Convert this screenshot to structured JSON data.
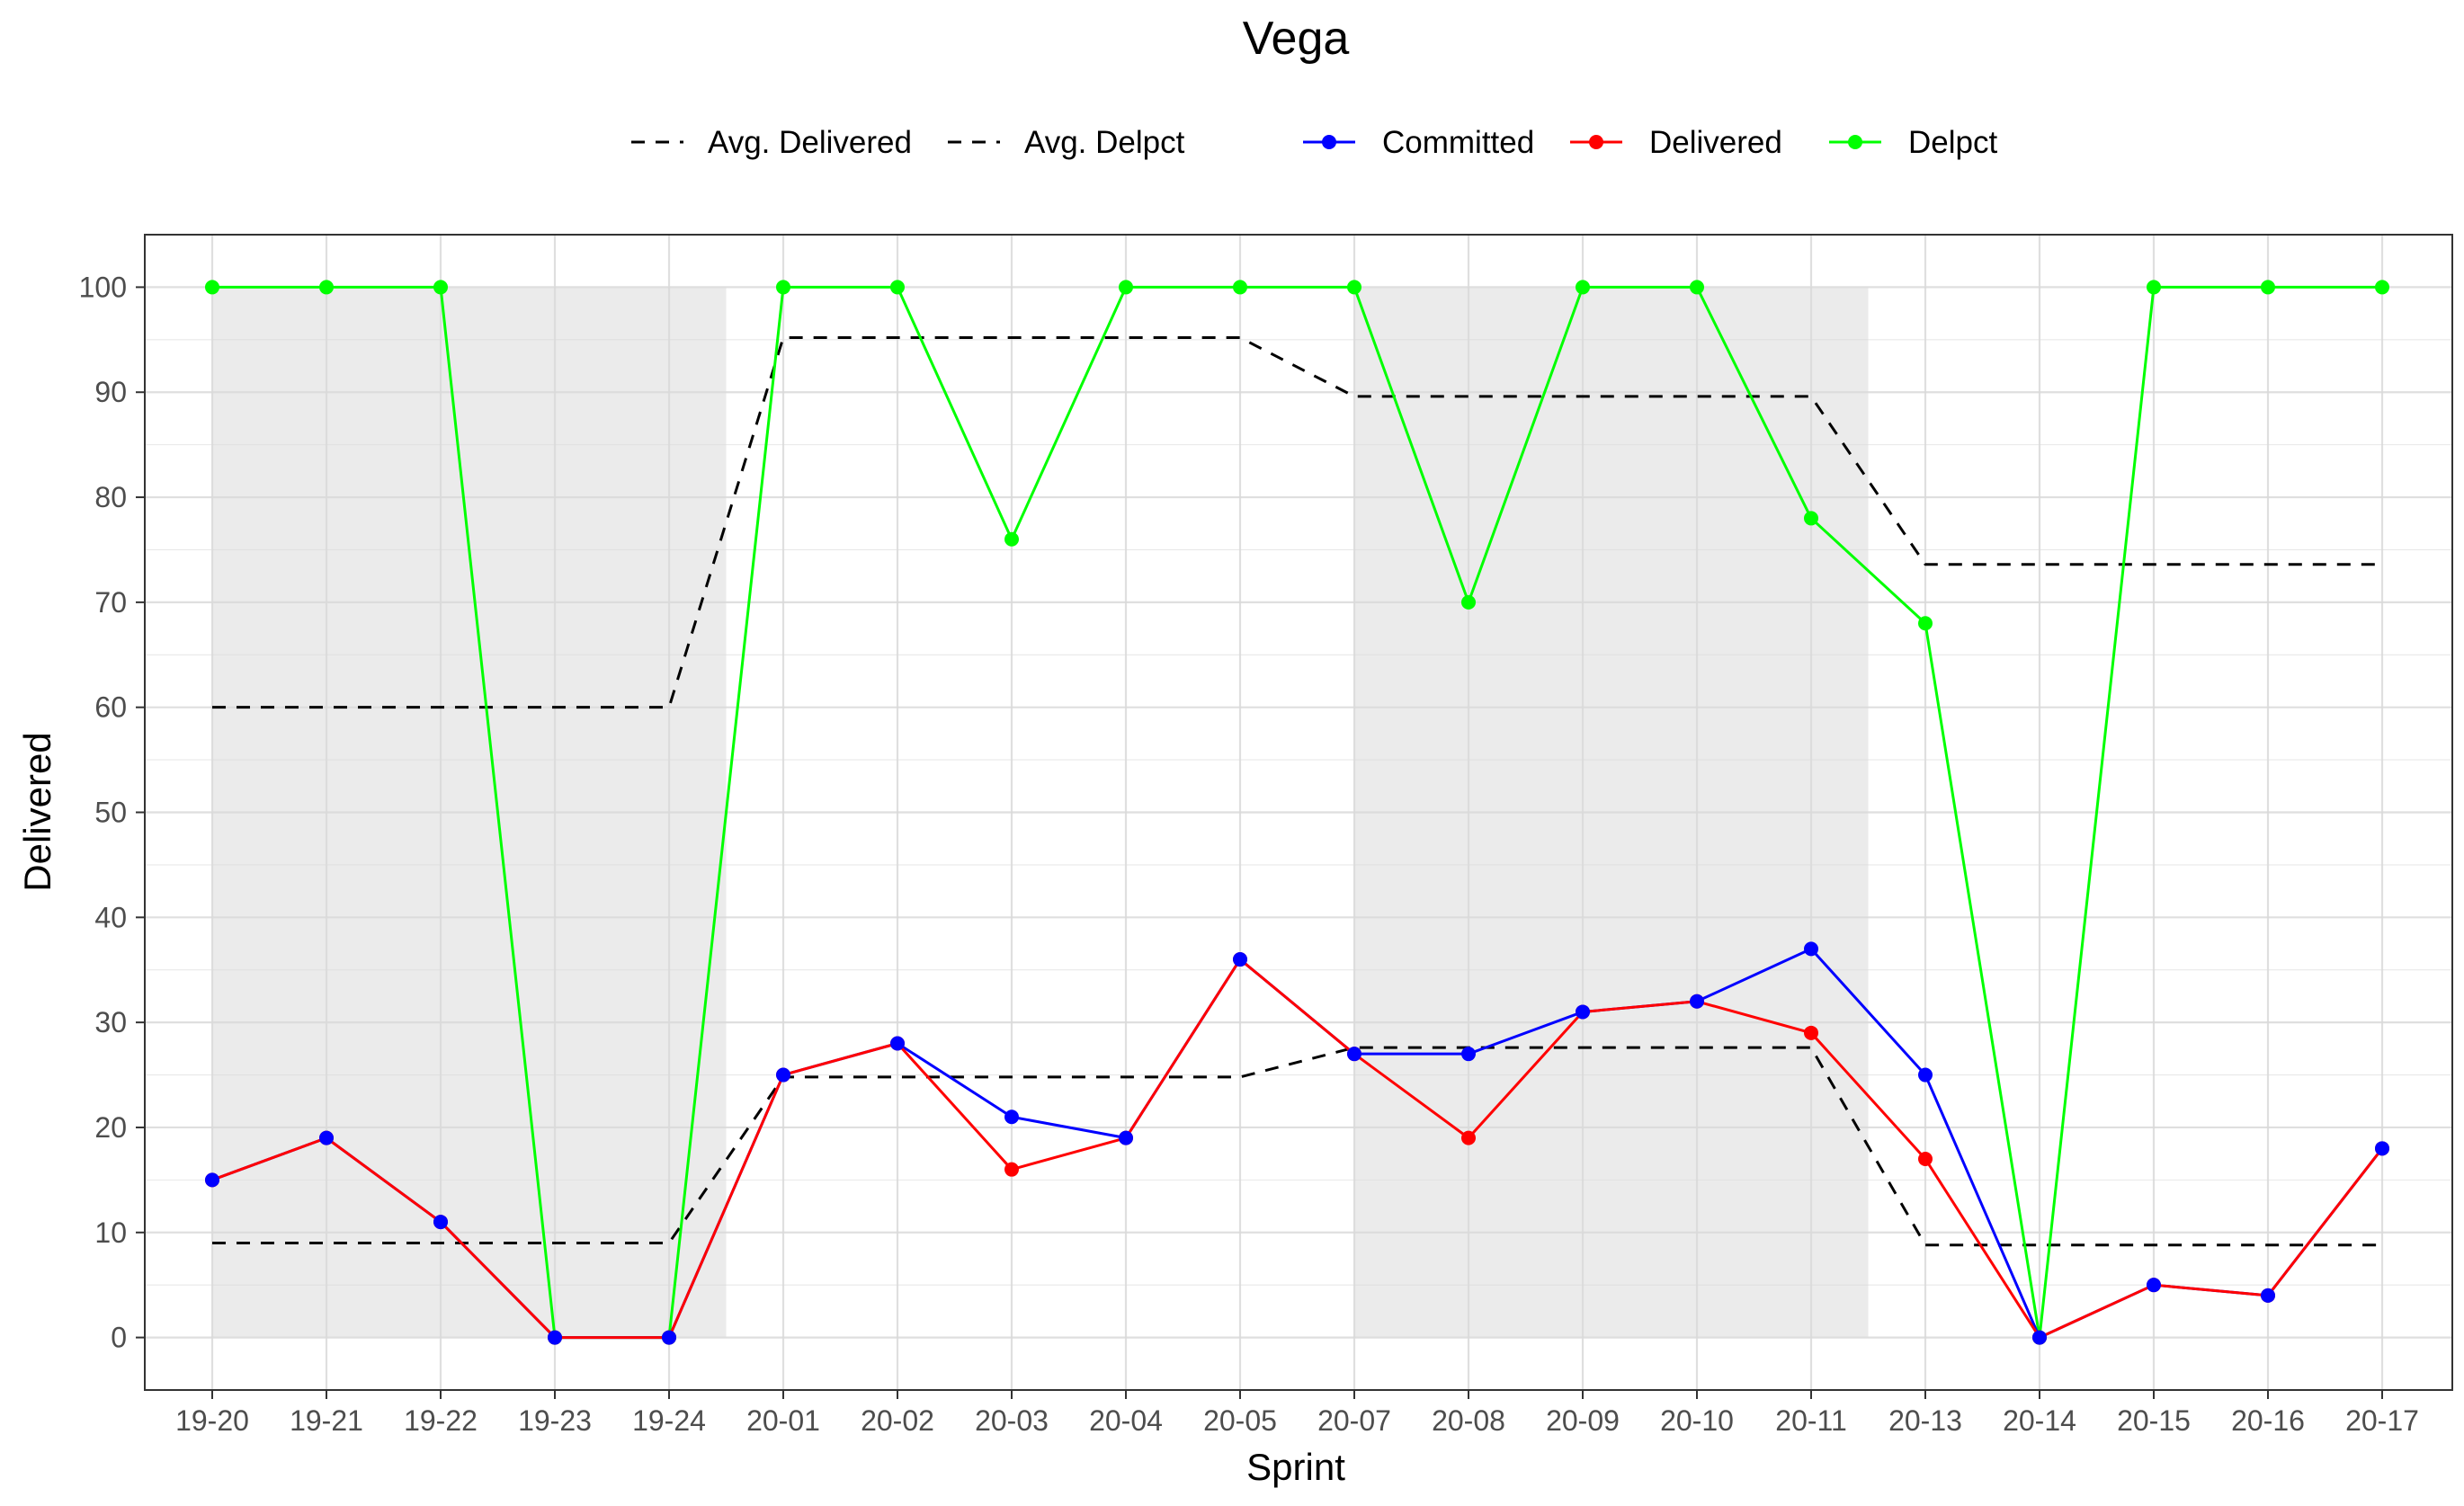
{
  "chart_data": {
    "type": "line",
    "title": "Vega",
    "xlabel": "Sprint",
    "ylabel": "Delivered",
    "ylim": [
      -5,
      105
    ],
    "y_ticks": [
      0,
      10,
      20,
      30,
      40,
      50,
      60,
      70,
      80,
      90,
      100
    ],
    "grid": true,
    "legend_position": "top",
    "categories": [
      "19-20",
      "19-21",
      "19-22",
      "19-23",
      "19-24",
      "20-01",
      "20-02",
      "20-03",
      "20-04",
      "20-05",
      "20-07",
      "20-08",
      "20-09",
      "20-10",
      "20-11",
      "20-13",
      "20-14",
      "20-15",
      "20-16",
      "20-17"
    ],
    "shaded_ranges": [
      {
        "from": "19-20",
        "to": "19-24"
      },
      {
        "from": "20-07",
        "to": "20-11"
      }
    ],
    "series": [
      {
        "name": "Delpct",
        "key": "delpct",
        "color": "#00ff00",
        "style": "solid",
        "markers": true,
        "values": [
          100,
          100,
          100,
          0,
          0,
          100,
          100,
          76,
          100,
          100,
          100,
          70,
          100,
          100,
          78,
          68,
          0,
          100,
          100,
          100
        ]
      },
      {
        "name": "Delivered",
        "key": "delivered",
        "color": "#ff0000",
        "style": "solid",
        "markers": true,
        "values": [
          15,
          19,
          11,
          0,
          0,
          25,
          28,
          16,
          19,
          36,
          27,
          19,
          31,
          32,
          29,
          17,
          0,
          5,
          4,
          18
        ]
      },
      {
        "name": "Committed",
        "key": "committed",
        "color": "#0000ff",
        "style": "solid",
        "markers": true,
        "values": [
          15,
          19,
          11,
          0,
          0,
          25,
          28,
          21,
          19,
          36,
          27,
          27,
          31,
          32,
          37,
          25,
          0,
          5,
          4,
          18
        ]
      },
      {
        "name": "Avg. Delivered",
        "key": "avg_delivered",
        "color": "#000000",
        "style": "dashed",
        "markers": false,
        "values": [
          9,
          9,
          9,
          9,
          9,
          24.8,
          24.8,
          24.8,
          24.8,
          24.8,
          27.6,
          27.6,
          27.6,
          27.6,
          27.6,
          8.8,
          8.8,
          8.8,
          8.8,
          8.8
        ]
      },
      {
        "name": "Avg. Delpct",
        "key": "avg_delpct",
        "color": "#000000",
        "style": "dashed",
        "markers": false,
        "values": [
          60,
          60,
          60,
          60,
          60,
          95.2,
          95.2,
          95.2,
          95.2,
          95.2,
          89.6,
          89.6,
          89.6,
          89.6,
          89.6,
          73.6,
          73.6,
          73.6,
          73.6,
          73.6
        ]
      }
    ],
    "legend_dashed": [
      "Avg. Delivered",
      "Avg. Delpct"
    ],
    "legend_solid": [
      "Committed",
      "Delivered",
      "Delpct"
    ]
  }
}
